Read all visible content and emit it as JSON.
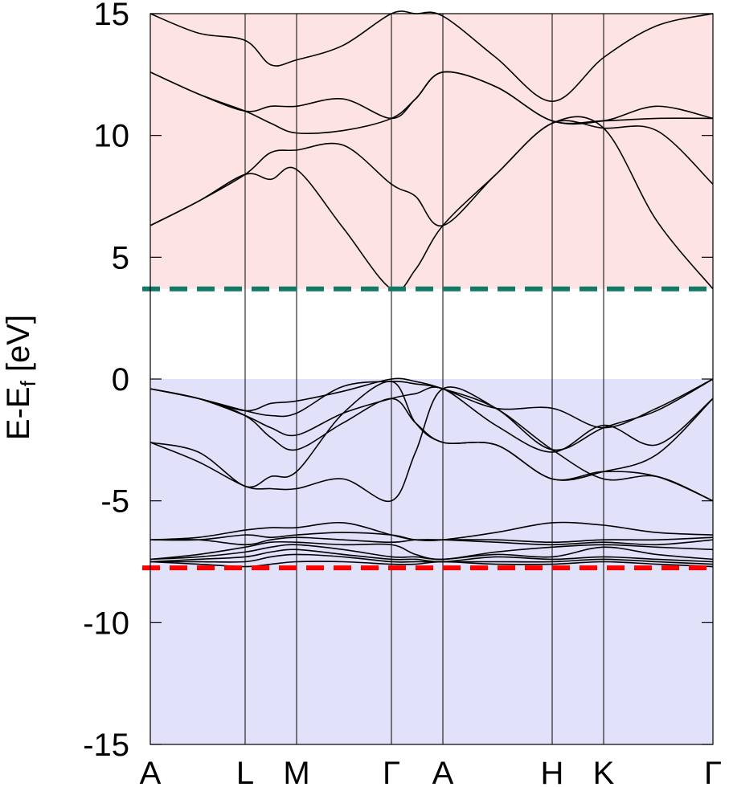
{
  "chart_data": {
    "type": "line",
    "title": "",
    "xlabel": "",
    "ylabel": "E-E",
    "ylabel_subscript": "f",
    "ylabel_unit": " [eV]",
    "ylim": [
      -15,
      15
    ],
    "xlim": [
      0,
      7
    ],
    "yticks": [
      -15,
      -10,
      -5,
      0,
      5,
      10,
      15
    ],
    "kpoints": [
      {
        "label": "A",
        "x": 0
      },
      {
        "label": "L",
        "x": 1.18
      },
      {
        "label": "M",
        "x": 1.82
      },
      {
        "label": "Γ",
        "x": 3.0
      },
      {
        "label": "A",
        "x": 3.64
      },
      {
        "label": "H",
        "x": 5.0
      },
      {
        "label": "K",
        "x": 5.64
      },
      {
        "label": "Γ",
        "x": 7.0
      }
    ],
    "regions": [
      {
        "name": "conduction",
        "y0": 3.7,
        "y1": 15,
        "color": "#fde3e3"
      },
      {
        "name": "valence",
        "y0": -15,
        "y1": 0,
        "color": "#e1e2fa"
      }
    ],
    "hlines": [
      {
        "name": "conduction-band-minimum",
        "y": 3.7,
        "color": "#117a65"
      },
      {
        "name": "valence-band-bottom",
        "y": -7.75,
        "color": "#ff0000"
      }
    ],
    "series": [
      {
        "x": [
          0,
          0.6,
          1.18,
          1.5,
          1.82,
          2.4,
          3.0,
          3.3,
          3.64,
          4.3,
          5.0,
          5.64,
          6.3,
          7.0
        ],
        "y": [
          6.3,
          7.3,
          8.4,
          8.2,
          8.6,
          6.2,
          3.7,
          4.5,
          6.3,
          8.4,
          10.5,
          10.3,
          6.5,
          3.7
        ]
      },
      {
        "x": [
          0,
          0.6,
          1.18,
          1.5,
          1.82,
          2.4,
          3.0,
          3.3,
          3.64,
          4.3,
          5.0,
          5.64,
          6.3,
          7.0
        ],
        "y": [
          6.3,
          7.3,
          8.4,
          9.3,
          9.4,
          9.6,
          8.0,
          7.5,
          6.3,
          8.4,
          10.5,
          10.3,
          10.2,
          8.0
        ]
      },
      {
        "x": [
          0,
          0.6,
          1.18,
          1.5,
          1.82,
          2.4,
          3.0,
          3.3,
          3.64,
          4.3,
          5.0,
          5.64,
          6.3,
          7.0
        ],
        "y": [
          12.6,
          11.7,
          11.0,
          10.5,
          10.1,
          10.2,
          10.7,
          11.5,
          12.6,
          12.0,
          10.6,
          10.6,
          10.7,
          10.7
        ]
      },
      {
        "x": [
          0,
          0.6,
          1.18,
          1.5,
          1.82,
          2.4,
          3.0,
          3.3,
          3.64,
          4.3,
          5.0,
          5.64,
          6.3,
          7.0
        ],
        "y": [
          12.6,
          11.7,
          11.0,
          11.2,
          11.2,
          11.5,
          10.7,
          11.5,
          12.6,
          12.0,
          10.6,
          10.6,
          11.2,
          10.7
        ]
      },
      {
        "x": [
          0,
          0.6,
          1.18,
          1.5,
          1.82,
          2.4,
          3.0,
          3.3,
          3.64,
          4.3,
          5.0,
          5.64,
          6.3,
          7.0
        ],
        "y": [
          15.0,
          14.2,
          13.9,
          12.9,
          13.1,
          13.7,
          15.0,
          15.0,
          14.9,
          13.2,
          11.4,
          13.2,
          14.5,
          15.0
        ]
      },
      {
        "x": [
          0,
          0.6,
          1.18,
          1.5,
          1.82,
          2.4,
          3.0,
          3.3,
          3.64,
          4.3,
          5.0,
          5.64,
          6.3,
          7.0
        ],
        "y": [
          -0.4,
          -0.8,
          -1.3,
          -1.0,
          -0.9,
          -0.5,
          0.0,
          -0.1,
          -0.4,
          -1.2,
          -1.2,
          -2.0,
          -1.2,
          0.0
        ]
      },
      {
        "x": [
          0,
          0.6,
          1.18,
          1.5,
          1.82,
          2.4,
          3.0,
          3.3,
          3.64,
          4.3,
          5.0,
          5.64,
          6.3,
          7.0
        ],
        "y": [
          -0.4,
          -0.8,
          -1.3,
          -1.5,
          -1.4,
          -0.3,
          -0.1,
          -0.2,
          -0.4,
          -1.2,
          -2.9,
          -2.0,
          -1.3,
          0.0
        ]
      },
      {
        "x": [
          0,
          0.6,
          1.18,
          1.5,
          1.82,
          2.4,
          3.0,
          3.3,
          3.64,
          4.3,
          5.0,
          5.64,
          6.3,
          7.0
        ],
        "y": [
          -0.4,
          -0.8,
          -1.5,
          -2.0,
          -2.3,
          -1.4,
          -0.8,
          -0.6,
          -0.4,
          -1.9,
          -3.0,
          -1.9,
          -2.7,
          -0.8
        ]
      },
      {
        "x": [
          0,
          0.6,
          1.18,
          1.5,
          1.82,
          2.4,
          3.0,
          3.3,
          3.64,
          4.3,
          5.0,
          5.64,
          6.3,
          7.0
        ],
        "y": [
          -0.4,
          -0.8,
          -1.5,
          -2.4,
          -2.9,
          -1.8,
          -0.8,
          -1.8,
          -2.6,
          -2.7,
          -4.1,
          -3.8,
          -3.1,
          -0.8
        ]
      },
      {
        "x": [
          0,
          0.6,
          1.18,
          1.5,
          1.82,
          2.4,
          3.0,
          3.3,
          3.64,
          4.3,
          5.0,
          5.64,
          6.3,
          7.0
        ],
        "y": [
          -2.6,
          -3.0,
          -4.4,
          -4.0,
          -3.8,
          -1.4,
          -0.1,
          -1.8,
          -2.6,
          -2.7,
          -4.1,
          -3.8,
          -4.0,
          -5.0
        ]
      },
      {
        "x": [
          0,
          0.6,
          1.18,
          1.5,
          1.82,
          2.4,
          3.0,
          3.3,
          3.64,
          4.3,
          5.0,
          5.64,
          6.3,
          7.0
        ],
        "y": [
          -2.6,
          -3.4,
          -4.4,
          -4.5,
          -4.5,
          -4.1,
          -5.0,
          -3.0,
          -0.4,
          -1.2,
          -2.9,
          -4.1,
          -4.0,
          -5.0
        ]
      },
      {
        "x": [
          0,
          0.6,
          1.18,
          1.5,
          1.82,
          2.4,
          3.0,
          3.3,
          3.64,
          4.3,
          5.0,
          5.64,
          6.3,
          7.0
        ],
        "y": [
          -6.6,
          -6.5,
          -6.2,
          -6.1,
          -6.1,
          -5.9,
          -6.4,
          -6.6,
          -6.6,
          -6.3,
          -5.9,
          -6.0,
          -6.3,
          -6.4
        ]
      },
      {
        "x": [
          0,
          0.6,
          1.18,
          1.5,
          1.82,
          2.4,
          3.0,
          3.3,
          3.64,
          4.3,
          5.0,
          5.64,
          6.3,
          7.0
        ],
        "y": [
          -6.6,
          -6.6,
          -6.4,
          -6.5,
          -6.4,
          -6.3,
          -6.4,
          -6.6,
          -6.6,
          -6.6,
          -6.7,
          -6.6,
          -6.6,
          -6.5
        ]
      },
      {
        "x": [
          0,
          0.6,
          1.18,
          1.5,
          1.82,
          2.4,
          3.0,
          3.3,
          3.64,
          4.3,
          5.0,
          5.64,
          6.3,
          7.0
        ],
        "y": [
          -6.6,
          -6.6,
          -6.8,
          -6.6,
          -6.5,
          -6.6,
          -6.7,
          -6.6,
          -6.6,
          -6.7,
          -6.8,
          -6.7,
          -6.8,
          -6.6
        ]
      },
      {
        "x": [
          0,
          0.6,
          1.18,
          1.5,
          1.82,
          2.4,
          3.0,
          3.3,
          3.64,
          4.3,
          5.0,
          5.64,
          6.3,
          7.0
        ],
        "y": [
          -7.4,
          -7.2,
          -6.9,
          -6.7,
          -6.7,
          -6.8,
          -6.8,
          -7.2,
          -7.4,
          -7.1,
          -6.9,
          -6.8,
          -6.9,
          -7.0
        ]
      },
      {
        "x": [
          0,
          0.6,
          1.18,
          1.5,
          1.82,
          2.4,
          3.0,
          3.3,
          3.64,
          4.3,
          5.0,
          5.64,
          6.3,
          7.0
        ],
        "y": [
          -7.4,
          -7.3,
          -7.1,
          -6.9,
          -6.8,
          -7.0,
          -7.3,
          -7.3,
          -7.4,
          -7.2,
          -7.3,
          -6.9,
          -7.2,
          -7.4
        ]
      },
      {
        "x": [
          0,
          0.6,
          1.18,
          1.5,
          1.82,
          2.4,
          3.0,
          3.3,
          3.64,
          4.3,
          5.0,
          5.64,
          6.3,
          7.0
        ],
        "y": [
          -7.5,
          -7.4,
          -7.3,
          -7.1,
          -7.0,
          -7.2,
          -7.4,
          -7.4,
          -7.5,
          -7.3,
          -7.4,
          -7.3,
          -7.4,
          -7.5
        ]
      },
      {
        "x": [
          0,
          0.6,
          1.18,
          1.5,
          1.82,
          2.4,
          3.0,
          3.3,
          3.64,
          4.3,
          5.0,
          5.64,
          6.3,
          7.0
        ],
        "y": [
          -7.5,
          -7.5,
          -7.5,
          -7.3,
          -7.2,
          -7.3,
          -7.5,
          -7.5,
          -7.5,
          -7.5,
          -7.5,
          -7.4,
          -7.5,
          -7.6
        ]
      },
      {
        "x": [
          0,
          0.6,
          1.18,
          1.5,
          1.82,
          2.4,
          3.0,
          3.3,
          3.64,
          4.3,
          5.0,
          5.64,
          6.3,
          7.0
        ],
        "y": [
          -7.5,
          -7.6,
          -7.7,
          -7.6,
          -7.5,
          -7.5,
          -7.6,
          -7.6,
          -7.5,
          -7.6,
          -7.6,
          -7.5,
          -7.6,
          -7.7
        ]
      }
    ]
  }
}
